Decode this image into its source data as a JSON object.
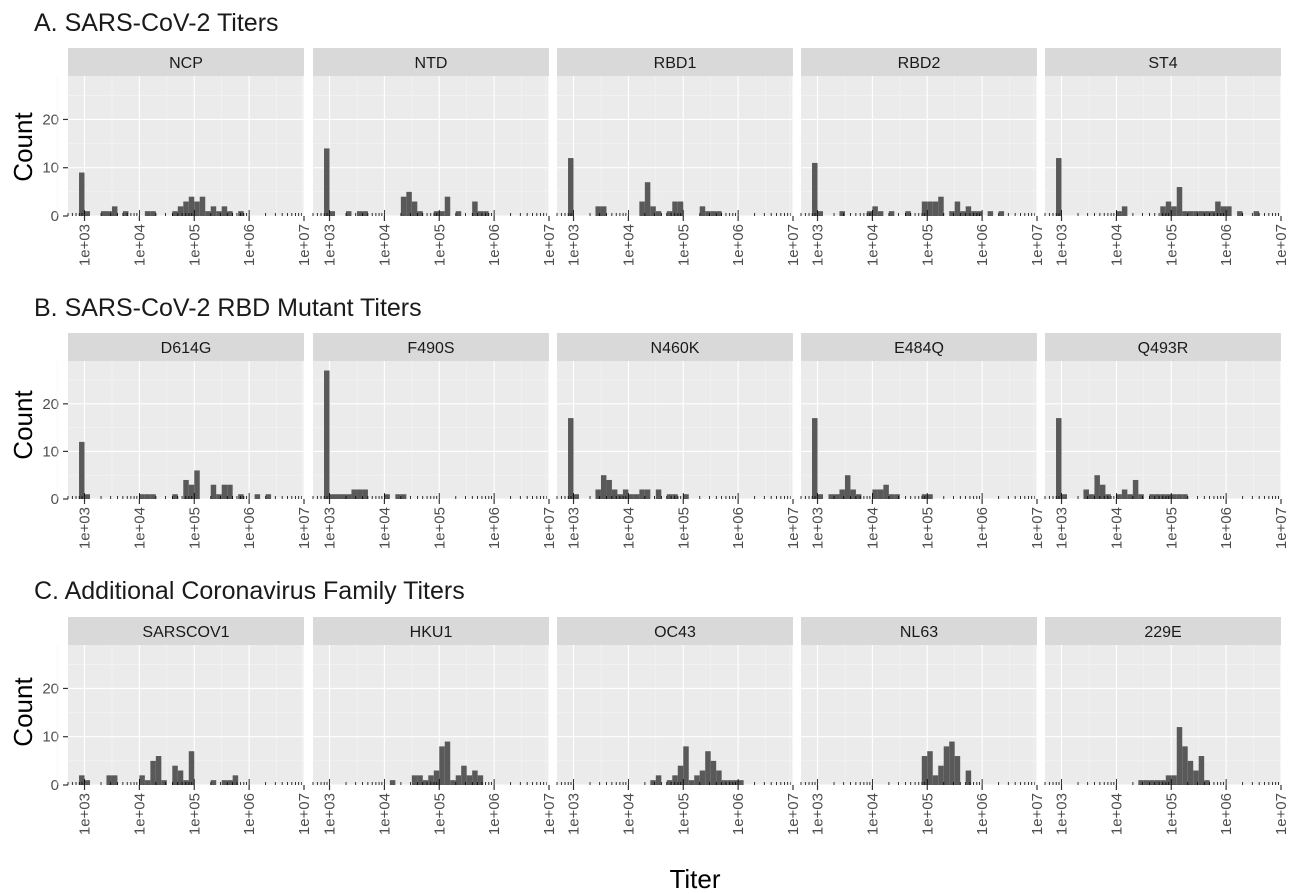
{
  "chart_data": {
    "type": "bar",
    "xlabel": "Titer",
    "ylabel": "Count",
    "x_scale": "log10",
    "x_range": [
      500,
      10000000
    ],
    "x_ticks": [
      "1e+03",
      "1e+04",
      "1e+05",
      "1e+06",
      "1e+07"
    ],
    "ylim": [
      0,
      29
    ],
    "y_ticks": [
      "0",
      "10",
      "20"
    ],
    "bin_width_log10": 0.1,
    "bins_note": "Each bin value is the count of the bin whose left edge is 10^start_log10 + 0.1*i.",
    "grid": true,
    "bar_color": "#595959",
    "panel_background": "#ebebeb",
    "strip_background": "#d9d9d9",
    "rows": [
      {
        "title": "A. SARS-CoV-2 Titers",
        "panels": [
          {
            "name": "NCP",
            "start_log10": 2.9,
            "counts": [
              9,
              1,
              0,
              0,
              1,
              1,
              2,
              0,
              1,
              0,
              0,
              0,
              1,
              1,
              0,
              0,
              0,
              1,
              2,
              3,
              4,
              3,
              4,
              1,
              2,
              1,
              2,
              1,
              0,
              1,
              0,
              0,
              0,
              0
            ]
          },
          {
            "name": "NTD",
            "start_log10": 2.9,
            "counts": [
              14,
              1,
              0,
              0,
              1,
              0,
              1,
              1,
              0,
              0,
              0,
              0,
              0,
              0,
              4,
              5,
              3,
              1,
              0,
              0,
              1,
              1,
              4,
              0,
              1,
              0,
              0,
              3,
              1,
              1
            ]
          },
          {
            "name": "RBD1",
            "start_log10": 2.9,
            "counts": [
              12,
              0,
              0,
              0,
              0,
              2,
              2,
              0,
              0,
              0,
              0,
              0,
              0,
              3,
              7,
              2,
              1,
              0,
              1,
              3,
              3,
              0,
              0,
              0,
              2,
              1,
              1,
              1
            ]
          },
          {
            "name": "RBD2",
            "start_log10": 2.9,
            "counts": [
              11,
              1,
              0,
              0,
              0,
              1,
              0,
              0,
              0,
              0,
              1,
              2,
              1,
              0,
              1,
              0,
              0,
              1,
              0,
              0,
              3,
              3,
              3,
              4,
              0,
              1,
              3,
              1,
              2,
              1,
              1,
              0,
              1,
              0,
              1
            ]
          },
          {
            "name": "ST4",
            "start_log10": 2.9,
            "counts": [
              12,
              0,
              0,
              0,
              0,
              0,
              0,
              0,
              0,
              0,
              0,
              1,
              2,
              0,
              0,
              0,
              0,
              0,
              0,
              2,
              3,
              2,
              6,
              1,
              1,
              1,
              1,
              1,
              1,
              3,
              2,
              2,
              0,
              1,
              0,
              0,
              1
            ]
          }
        ]
      },
      {
        "title": "B. SARS-CoV-2 RBD Mutant Titers",
        "panels": [
          {
            "name": "D614G",
            "start_log10": 2.9,
            "counts": [
              12,
              1,
              0,
              0,
              0,
              0,
              0,
              0,
              0,
              0,
              0,
              1,
              1,
              1,
              0,
              0,
              0,
              1,
              0,
              4,
              3,
              6,
              0,
              0,
              3,
              1,
              3,
              3,
              0,
              1,
              0,
              0,
              1,
              0,
              1
            ]
          },
          {
            "name": "F490S",
            "start_log10": 2.9,
            "counts": [
              27,
              1,
              1,
              1,
              1,
              2,
              2,
              2,
              0,
              0,
              0,
              1,
              0,
              1,
              1
            ]
          },
          {
            "name": "N460K",
            "start_log10": 2.9,
            "counts": [
              17,
              1,
              0,
              0,
              0,
              2,
              5,
              4,
              2,
              1,
              2,
              1,
              1,
              2,
              2,
              0,
              2,
              0,
              1,
              1,
              0,
              1
            ]
          },
          {
            "name": "E484Q",
            "start_log10": 2.9,
            "counts": [
              17,
              1,
              0,
              1,
              1,
              2,
              5,
              2,
              1,
              0,
              0,
              2,
              2,
              3,
              1,
              1,
              0,
              0,
              0,
              0,
              1,
              1
            ]
          },
          {
            "name": "Q493R",
            "start_log10": 2.9,
            "counts": [
              17,
              1,
              0,
              0,
              0,
              2,
              1,
              5,
              3,
              1,
              0,
              1,
              2,
              1,
              4,
              1,
              0,
              1,
              1,
              1,
              1,
              1,
              1,
              1
            ]
          }
        ]
      },
      {
        "title": "C. Additional Coronavirus Family Titers",
        "panels": [
          {
            "name": "SARSCOV1",
            "start_log10": 2.9,
            "counts": [
              2,
              1,
              0,
              0,
              0,
              2,
              2,
              0,
              0,
              0,
              0,
              2,
              1,
              5,
              6,
              1,
              0,
              4,
              3,
              1,
              7,
              0,
              0,
              0,
              1,
              0,
              1,
              1,
              2
            ]
          },
          {
            "name": "HKU1",
            "start_log10": 2.9,
            "counts": [
              0,
              0,
              0,
              0,
              0,
              0,
              0,
              0,
              0,
              0,
              0,
              0,
              1,
              0,
              0,
              0,
              2,
              2,
              1,
              2,
              3,
              8,
              9,
              1,
              2,
              4,
              2,
              3,
              2
            ]
          },
          {
            "name": "OC43",
            "start_log10": 2.9,
            "counts": [
              0,
              0,
              0,
              0,
              0,
              0,
              0,
              0,
              0,
              0,
              0,
              0,
              0,
              0,
              0,
              1,
              2,
              0,
              1,
              2,
              4,
              8,
              1,
              2,
              3,
              7,
              5,
              3,
              1,
              1,
              1,
              1
            ]
          },
          {
            "name": "NL63",
            "start_log10": 2.9,
            "counts": [
              0,
              0,
              0,
              0,
              0,
              0,
              0,
              0,
              0,
              0,
              0,
              0,
              0,
              0,
              0,
              0,
              0,
              0,
              0,
              0,
              6,
              7,
              2,
              4,
              8,
              9,
              6,
              0,
              3
            ]
          },
          {
            "name": "229E",
            "start_log10": 2.9,
            "counts": [
              0,
              0,
              0,
              0,
              0,
              0,
              0,
              0,
              0,
              0,
              0,
              0,
              0,
              0,
              0,
              1,
              1,
              1,
              1,
              1,
              2,
              2,
              12,
              8,
              5,
              3,
              6,
              1
            ]
          }
        ]
      }
    ]
  }
}
